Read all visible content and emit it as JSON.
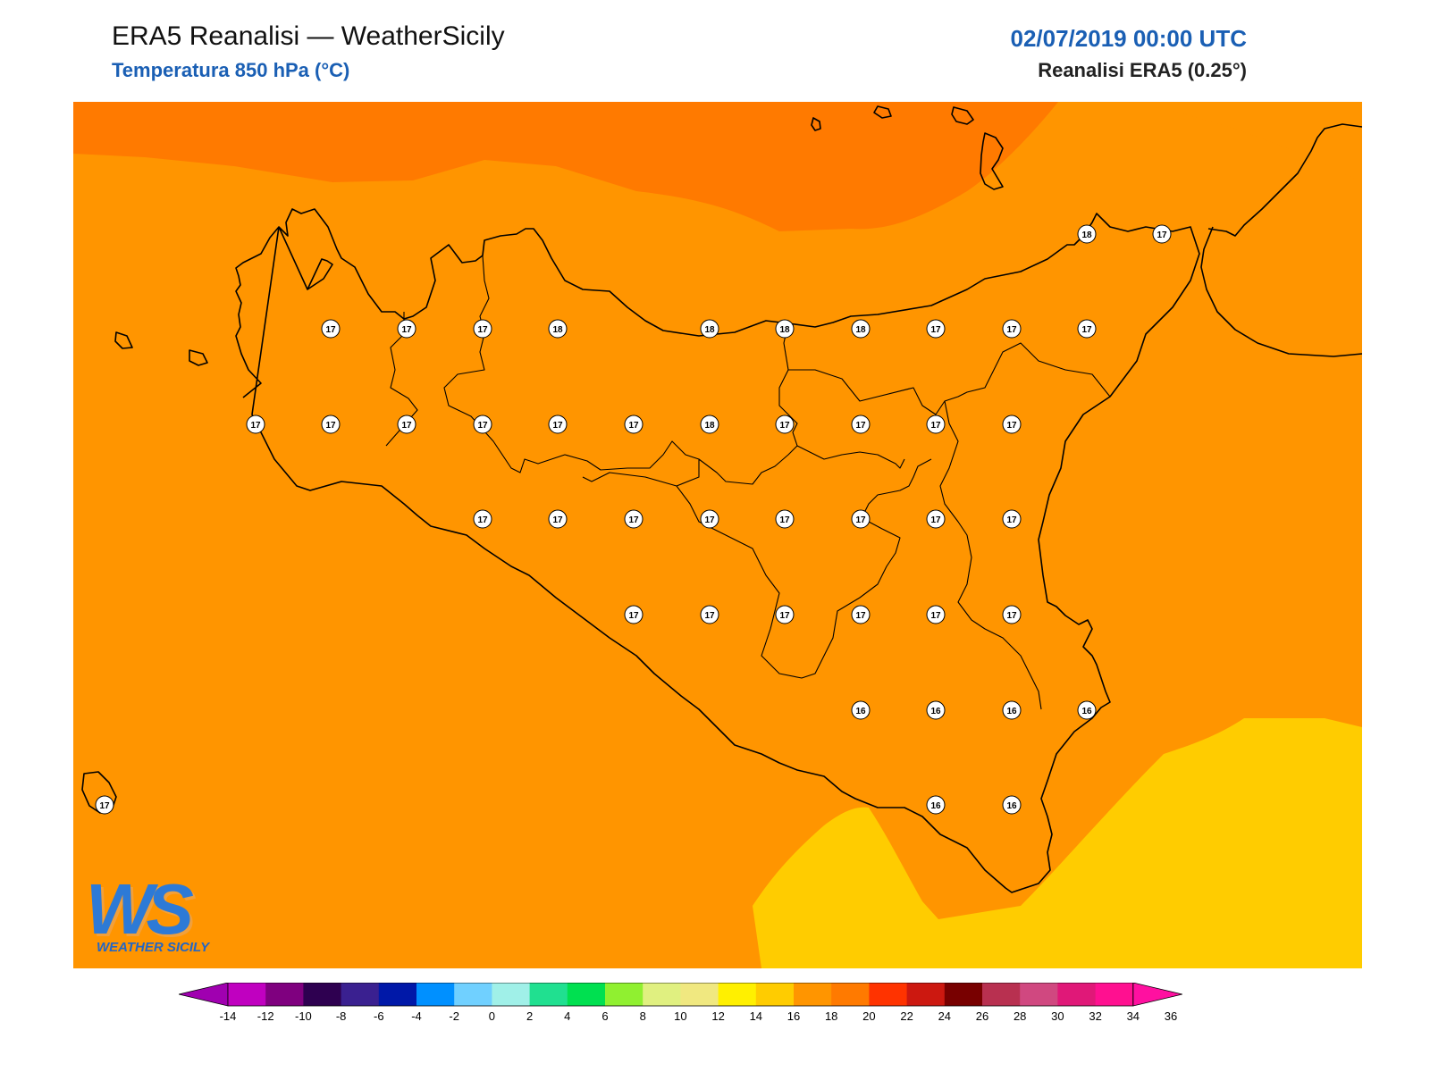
{
  "header": {
    "title": "ERA5 Reanalisi — WeatherSicily",
    "subtitle": "Temperatura 850 hPa (°C)",
    "datetime": "02/07/2019 00:00 UTC",
    "source": "Reanalisi ERA5 (0.25°)"
  },
  "map": {
    "fill_colors": {
      "band_16_18": "#ff9500",
      "band_18_20": "#ff7a00",
      "band_14_16": "#ffcc00"
    },
    "stations": [
      {
        "value": "18"
      },
      {
        "value": "17"
      },
      {
        "value": "17"
      },
      {
        "value": "17"
      },
      {
        "value": "17"
      },
      {
        "value": "18"
      },
      {
        "value": "18"
      },
      {
        "value": "18"
      },
      {
        "value": "18"
      },
      {
        "value": "17"
      },
      {
        "value": "17"
      },
      {
        "value": "17"
      },
      {
        "value": "17"
      },
      {
        "value": "17"
      },
      {
        "value": "17"
      },
      {
        "value": "17"
      },
      {
        "value": "17"
      },
      {
        "value": "17"
      },
      {
        "value": "18"
      },
      {
        "value": "17"
      },
      {
        "value": "17"
      },
      {
        "value": "17"
      },
      {
        "value": "17"
      },
      {
        "value": "17"
      },
      {
        "value": "17"
      },
      {
        "value": "17"
      },
      {
        "value": "17"
      },
      {
        "value": "17"
      },
      {
        "value": "17"
      },
      {
        "value": "17"
      },
      {
        "value": "17"
      },
      {
        "value": "17"
      },
      {
        "value": "17"
      },
      {
        "value": "17"
      },
      {
        "value": "17"
      },
      {
        "value": "17"
      },
      {
        "value": "17"
      },
      {
        "value": "16"
      },
      {
        "value": "16"
      },
      {
        "value": "16"
      },
      {
        "value": "16"
      },
      {
        "value": "17"
      },
      {
        "value": "16"
      },
      {
        "value": "16"
      }
    ]
  },
  "colorbar": {
    "ticks": [
      "-14",
      "-12",
      "-10",
      "-8",
      "-6",
      "-4",
      "-2",
      "0",
      "2",
      "4",
      "6",
      "8",
      "10",
      "12",
      "14",
      "16",
      "18",
      "20",
      "22",
      "24",
      "26",
      "28",
      "30",
      "32",
      "34",
      "36"
    ],
    "colors": [
      "#c000c0",
      "#7f007f",
      "#2e0050",
      "#3a2090",
      "#0018a8",
      "#0090ff",
      "#70d0ff",
      "#a0f0e8",
      "#20e090",
      "#00e050",
      "#90f030",
      "#e0f080",
      "#f0e880",
      "#fff000",
      "#ffcc00",
      "#ff9500",
      "#ff7a00",
      "#ff3300",
      "#cc1810",
      "#780000",
      "#b83050",
      "#d04880",
      "#e01878",
      "#ff1090"
    ],
    "low_extend_color": "#a000b0",
    "high_extend_color": "#ff10a0"
  },
  "logo": {
    "letters": "WS",
    "tagline": "WEATHER SICILY"
  }
}
